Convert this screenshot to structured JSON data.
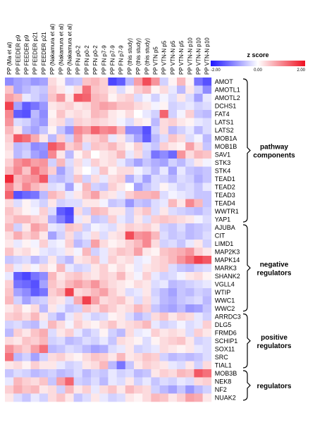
{
  "chart_data": {
    "type": "heatmap",
    "title": "",
    "columns": [
      "PP (Ma et al)",
      "PP FEEDER p9",
      "PP FEEDER p9",
      "PP FEEDER p21",
      "PP FEEDER p21",
      "PP (Nakamura et al)",
      "PP (Nakamura et al)",
      "PP (Nakamura et al)",
      "PP FN p0-2",
      "PP FN p0-2",
      "PP FN p0-2",
      "PP FN p7-9",
      "PP FN p7-9",
      "PP FN p7-9",
      "PP (this study)",
      "PP (this study)",
      "PP (this study)",
      "PP VTN p5",
      "PP VTN-N p5",
      "PP VTN-N p5",
      "PP VTN-N p5",
      "PP VTN-N p10",
      "PP VTN-N p10",
      "PP VTN-N p10"
    ],
    "rows": [
      "AMOT",
      "AMOTL1",
      "AMOTL2",
      "DCHS1",
      "FAT4",
      "LATS1",
      "LATS2",
      "MOB1A",
      "MOB1B",
      "SAV1",
      "STK3",
      "STK4",
      "TEAD1",
      "TEAD2",
      "TEAD3",
      "TEAD4",
      "WWTR1",
      "YAP1",
      "AJUBA",
      "CIT",
      "LIMD1",
      "MAP2K3",
      "MAPK14",
      "MARK3",
      "SHANK2",
      "VGLL4",
      "WTIP",
      "WWC1",
      "WWC2",
      "ARRDC3",
      "DLG5",
      "FRMD6",
      "SCHIP1",
      "SOX11",
      "SRC",
      "TIAL1",
      "MOB3B",
      "NEK8",
      "NF2",
      "NUAK2"
    ],
    "values": [
      [
        -1.0,
        -0.8,
        -0.7,
        -0.9,
        -0.8,
        0.3,
        0.1,
        -0.6,
        -0.5,
        0.5,
        0.6,
        0.4,
        -1.6,
        -1.4,
        -0.6,
        0.8,
        1.5,
        0.9,
        -0.4,
        0.1,
        0.6,
        0.1,
        -1.2,
        -1.5
      ],
      [
        0.5,
        -0.8,
        -0.6,
        -0.4,
        -0.5,
        0.4,
        0.2,
        -0.1,
        0.3,
        1.2,
        0.5,
        0.4,
        0.2,
        -0.3,
        0.1,
        0.4,
        0.6,
        0.1,
        0.3,
        -0.2,
        -0.6,
        0.2,
        -0.4,
        -1.0
      ],
      [
        0.8,
        0.6,
        -0.2,
        -0.4,
        -0.6,
        0.5,
        0.9,
        0.2,
        1.4,
        1.3,
        0.6,
        0.5,
        0.1,
        0.3,
        0.4,
        -0.3,
        -0.1,
        -0.4,
        -0.1,
        -0.3,
        0.2,
        -0.3,
        -0.8,
        -0.2
      ],
      [
        1.6,
        -0.8,
        -1.4,
        -1.2,
        -0.9,
        0.2,
        0.3,
        0.4,
        0.2,
        0.3,
        0.6,
        0.8,
        0.7,
        0.5,
        0.5,
        0.3,
        0.2,
        -0.1,
        0.1,
        -0.4,
        -0.3,
        -0.2,
        -0.4,
        -0.3
      ],
      [
        1.0,
        -1.4,
        -1.5,
        -0.6,
        -1.0,
        0.1,
        0.5,
        0.2,
        0.3,
        0.2,
        0.6,
        0.5,
        0.2,
        0.1,
        0.3,
        0.0,
        -0.2,
        -0.4,
        1.3,
        -0.4,
        -0.1,
        0.4,
        -0.5,
        -0.6
      ],
      [
        0.9,
        -0.3,
        -0.4,
        -0.7,
        -0.9,
        0.2,
        0.3,
        -0.4,
        0.4,
        0.3,
        0.4,
        0.3,
        0.2,
        -0.1,
        -0.3,
        0.2,
        0.1,
        -0.6,
        0.3,
        0.4,
        0.2,
        0.1,
        -0.2,
        -0.3
      ],
      [
        0.6,
        0.2,
        -0.6,
        -0.8,
        -0.5,
        0.1,
        -0.5,
        -0.9,
        1.0,
        0.8,
        1.3,
        1.0,
        1.1,
        0.6,
        -1.0,
        -1.0,
        -1.5,
        -0.4,
        0.3,
        -0.6,
        -0.4,
        -0.2,
        -0.6,
        -0.3
      ],
      [
        0.4,
        1.4,
        1.2,
        0.7,
        0.2,
        -0.6,
        0.4,
        -0.4,
        0.8,
        0.3,
        0.4,
        0.6,
        -0.2,
        0.2,
        -0.4,
        -0.8,
        -1.4,
        -0.6,
        -0.3,
        0.5,
        0.3,
        -0.3,
        -0.1,
        -0.6
      ],
      [
        0.3,
        -0.6,
        -0.5,
        -1.0,
        -0.9,
        1.4,
        1.1,
        0.4,
        0.6,
        -0.3,
        0.5,
        0.4,
        0.6,
        0.3,
        0.1,
        0.4,
        -0.3,
        -0.5,
        0.4,
        0.2,
        0.1,
        0.8,
        0.3,
        -0.5
      ],
      [
        0.2,
        -0.6,
        -0.4,
        -0.8,
        -1.0,
        1.0,
        0.2,
        -0.6,
        0.1,
        0.4,
        0.0,
        0.2,
        0.3,
        0.6,
        -0.2,
        0.3,
        -0.4,
        -1.2,
        -1.0,
        -1.3,
        0.9,
        0.3,
        0.6,
        0.5
      ],
      [
        0.4,
        0.9,
        1.1,
        0.8,
        0.9,
        -0.4,
        0.6,
        -0.3,
        0.3,
        -0.2,
        0.4,
        0.2,
        0.3,
        -0.2,
        -0.5,
        -0.8,
        -0.5,
        -0.7,
        -0.8,
        -0.4,
        -0.6,
        -0.3,
        0.2,
        -0.1
      ],
      [
        0.6,
        1.0,
        0.5,
        1.2,
        0.8,
        0.4,
        -0.8,
        -0.4,
        0.2,
        0.0,
        -0.2,
        0.5,
        0.1,
        0.3,
        0.3,
        -0.1,
        -0.3,
        -0.6,
        -0.2,
        -0.8,
        -0.2,
        -0.5,
        -0.6,
        -0.5
      ],
      [
        1.8,
        0.6,
        0.8,
        0.9,
        1.4,
        -0.5,
        -0.6,
        -0.4,
        0.5,
        -0.4,
        0.3,
        -0.2,
        0.3,
        0.4,
        -0.7,
        -0.3,
        -0.8,
        -0.3,
        -0.4,
        -0.6,
        -0.3,
        -0.4,
        -0.7,
        -0.5
      ],
      [
        1.0,
        0.5,
        1.0,
        0.6,
        0.4,
        -0.3,
        -0.2,
        -0.8,
        -0.1,
        0.6,
        -0.4,
        -0.5,
        0.4,
        0.2,
        0.0,
        -0.8,
        -0.5,
        -0.3,
        0.1,
        -0.2,
        -0.4,
        -0.3,
        -0.5,
        -0.2
      ],
      [
        1.3,
        -1.5,
        -1.3,
        -1.2,
        -0.6,
        0.6,
        0.4,
        -0.2,
        0.2,
        0.5,
        0.8,
        0.3,
        0.2,
        -0.2,
        0.4,
        0.6,
        0.6,
        0.7,
        -0.3,
        -0.1,
        -0.2,
        -0.3,
        -0.5,
        -0.5
      ],
      [
        0.3,
        -0.3,
        0.1,
        -0.2,
        -0.4,
        0.2,
        -0.4,
        -0.3,
        -0.3,
        0.2,
        0.2,
        -0.1,
        -0.5,
        -0.4,
        -0.9,
        -0.5,
        -0.6,
        -0.3,
        -0.2,
        0.6,
        0.2,
        1.0,
        0.6,
        -0.5
      ],
      [
        0.5,
        0.3,
        0.1,
        -0.1,
        0.4,
        -0.3,
        -1.4,
        -1.6,
        0.3,
        -0.4,
        0.6,
        0.5,
        0.2,
        0.2,
        -0.4,
        0.3,
        0.5,
        -0.3,
        0.2,
        -0.3,
        -0.4,
        -0.5,
        -0.6,
        -0.4
      ],
      [
        0.4,
        0.6,
        0.6,
        0.4,
        0.3,
        -0.7,
        -1.1,
        -1.5,
        -0.2,
        0.2,
        -0.5,
        -0.4,
        0.4,
        -0.2,
        -0.4,
        0.2,
        -0.3,
        0.4,
        0.5,
        0.4,
        0.3,
        0.2,
        -0.1,
        -0.3
      ],
      [
        0.6,
        -0.4,
        0.2,
        0.8,
        0.6,
        -0.2,
        -0.3,
        0.5,
        0.4,
        -0.4,
        -0.1,
        -0.2,
        -0.3,
        0.2,
        0.4,
        0.3,
        0.4,
        0.2,
        -0.4,
        -0.5,
        -0.3,
        -0.6,
        -0.5,
        -0.4
      ],
      [
        0.3,
        0.7,
        0.4,
        0.6,
        0.2,
        -0.8,
        -0.4,
        0.3,
        -0.4,
        -0.2,
        0.3,
        -0.3,
        0.2,
        0.3,
        1.5,
        0.9,
        1.0,
        0.6,
        -0.3,
        -0.5,
        -0.4,
        -0.6,
        -0.5,
        -0.3
      ],
      [
        0.2,
        -0.2,
        0.1,
        -0.1,
        0.4,
        -0.2,
        -0.1,
        0.4,
        -0.6,
        -0.4,
        0.8,
        0.3,
        0.1,
        0.2,
        0.4,
        0.6,
        1.0,
        0.3,
        -0.4,
        -0.3,
        -0.5,
        -0.2,
        0.2,
        -0.4
      ],
      [
        0.5,
        0.2,
        0.3,
        0.1,
        -0.2,
        -0.3,
        -0.2,
        0.2,
        -0.1,
        0.6,
        -0.4,
        -0.2,
        0.3,
        0.5,
        0.4,
        0.8,
        0.2,
        0.1,
        0.5,
        0.6,
        0.7,
        0.9,
        0.4,
        0.2
      ],
      [
        -0.5,
        -0.4,
        -0.3,
        -0.6,
        -0.4,
        0.2,
        -0.4,
        -0.6,
        0.2,
        0.3,
        0.5,
        -0.2,
        0.4,
        0.2,
        0.3,
        -0.2,
        -0.1,
        0.3,
        0.4,
        0.6,
        0.9,
        1.2,
        1.6,
        1.4
      ],
      [
        0.4,
        -0.2,
        0.2,
        -0.1,
        0.3,
        0.1,
        0.6,
        -0.2,
        -0.4,
        -0.3,
        0.2,
        0.4,
        0.1,
        0.3,
        0.1,
        -0.2,
        0.2,
        0.3,
        0.4,
        -0.3,
        -0.5,
        -0.6,
        -0.4,
        -0.3
      ],
      [
        -0.2,
        -1.4,
        -1.6,
        -1.2,
        -1.0,
        0.6,
        0.2,
        0.4,
        0.5,
        0.3,
        0.2,
        0.4,
        0.3,
        0.6,
        0.2,
        -0.1,
        0.4,
        -0.2,
        -0.4,
        -0.3,
        -0.1,
        0.2,
        0.3,
        0.1
      ],
      [
        0.4,
        -1.2,
        -1.3,
        -1.5,
        -0.8,
        0.5,
        0.3,
        0.6,
        0.8,
        0.6,
        0.9,
        0.5,
        0.3,
        0.2,
        0.1,
        0.3,
        0.2,
        -0.3,
        -0.2,
        -0.6,
        -0.5,
        -0.4,
        -0.3,
        -0.2
      ],
      [
        0.5,
        -0.8,
        -1.0,
        -1.4,
        -1.2,
        0.4,
        0.6,
        1.6,
        0.3,
        0.4,
        0.6,
        0.8,
        0.4,
        0.2,
        -0.3,
        -0.2,
        0.2,
        -0.4,
        -0.6,
        -0.8,
        -0.5,
        -0.6,
        -0.4,
        -0.5
      ],
      [
        0.6,
        -0.4,
        -0.8,
        -0.5,
        -0.4,
        0.3,
        0.2,
        -0.3,
        0.7,
        1.6,
        0.8,
        0.3,
        0.4,
        0.5,
        0.2,
        -0.3,
        0.3,
        -0.3,
        -0.6,
        -0.7,
        -0.5,
        -0.4,
        -0.3,
        -0.6
      ],
      [
        0.2,
        0.4,
        0.1,
        0.3,
        -0.6,
        0.2,
        -0.2,
        -0.5,
        -0.4,
        0.5,
        0.3,
        0.6,
        0.4,
        0.2,
        0.3,
        0.6,
        0.4,
        -0.5,
        -0.7,
        -0.8,
        -0.6,
        -0.9,
        -0.8,
        -0.5
      ],
      [
        0.4,
        0.5,
        0.3,
        0.6,
        0.2,
        -0.4,
        -0.7,
        -0.2,
        0.3,
        -0.2,
        -0.4,
        -0.3,
        0.1,
        0.2,
        -0.3,
        -0.6,
        -0.4,
        0.3,
        0.5,
        0.2,
        0.4,
        0.3,
        -0.2,
        -0.4
      ],
      [
        -0.4,
        -0.3,
        -0.5,
        -0.6,
        -0.2,
        0.6,
        0.3,
        -0.1,
        0.4,
        0.2,
        0.1,
        0.3,
        0.5,
        0.2,
        0.3,
        0.4,
        0.6,
        -0.2,
        -0.4,
        -0.3,
        -0.1,
        -0.3,
        -0.2,
        0.4
      ],
      [
        -0.6,
        0.4,
        0.2,
        0.5,
        0.7,
        -0.3,
        0.2,
        0.4,
        -0.2,
        -0.5,
        -0.3,
        0.1,
        -0.4,
        -0.6,
        0.3,
        -0.2,
        -0.1,
        0.4,
        0.2,
        0.3,
        0.2,
        -0.3,
        0.4,
        0.2
      ],
      [
        0.3,
        0.2,
        0.5,
        0.4,
        0.6,
        -0.4,
        -0.3,
        -0.6,
        -0.5,
        -0.3,
        -0.4,
        -0.2,
        -0.5,
        0.3,
        0.2,
        0.1,
        -0.3,
        0.1,
        0.3,
        0.4,
        0.5,
        0.2,
        -0.4,
        -0.3
      ],
      [
        0.9,
        0.6,
        0.4,
        0.8,
        1.2,
        -0.6,
        -0.5,
        -0.3,
        -0.4,
        -0.6,
        -0.8,
        -0.7,
        -0.3,
        -0.2,
        0.2,
        -0.4,
        -0.3,
        -0.2,
        0.3,
        0.2,
        0.1,
        0.2,
        -0.2,
        -0.3
      ],
      [
        1.2,
        -0.6,
        -0.4,
        -0.8,
        -0.4,
        0.3,
        0.4,
        0.2,
        0.1,
        0.3,
        0.5,
        0.4,
        0.2,
        0.6,
        0.2,
        0.3,
        0.5,
        0.4,
        -0.4,
        -0.6,
        -0.5,
        -0.6,
        -0.5,
        -0.3
      ],
      [
        0.2,
        0.3,
        0.1,
        0.4,
        0.2,
        0.2,
        -0.2,
        -0.4,
        -0.3,
        0.2,
        0.3,
        0.6,
        -0.6,
        -1.2,
        -0.5,
        0.2,
        0.4,
        0.3,
        0.2,
        -0.2,
        -0.3,
        0.2,
        -0.4,
        0.3
      ],
      [
        -0.5,
        -0.3,
        -0.4,
        -0.6,
        -0.5,
        -0.4,
        -0.6,
        -0.5,
        -0.3,
        -0.6,
        -0.4,
        -0.5,
        -0.2,
        -0.4,
        -0.3,
        -0.6,
        -0.5,
        0.2,
        0.4,
        0.3,
        0.6,
        0.5,
        1.4,
        1.2
      ],
      [
        -0.2,
        0.6,
        0.4,
        0.3,
        0.5,
        -0.5,
        0.8,
        1.3,
        -0.4,
        -0.5,
        -0.3,
        -0.6,
        -0.2,
        -0.3,
        0.2,
        -0.4,
        -0.2,
        -0.5,
        -0.3,
        -0.4,
        -0.2,
        -0.3,
        0.3,
        0.4
      ],
      [
        0.4,
        0.7,
        0.5,
        0.6,
        0.2,
        0.3,
        -0.4,
        0.6,
        0.2,
        0.4,
        -0.2,
        0.3,
        0.5,
        0.2,
        0.6,
        0.4,
        0.3,
        -0.4,
        -0.6,
        -0.8,
        -0.5,
        -0.9,
        -0.6,
        -0.4
      ],
      [
        0.2,
        -0.3,
        -0.5,
        -0.2,
        -0.4,
        0.3,
        0.5,
        0.2,
        -0.5,
        -0.3,
        0.2,
        -0.2,
        -0.4,
        -0.3,
        0.2,
        0.1,
        0.3,
        0.6,
        0.5,
        0.2,
        0.4,
        0.8,
        0.7,
        0.2
      ]
    ],
    "colorbar": {
      "label": "z score",
      "min": -2.0,
      "max": 2.0,
      "ticks": [
        "-2.00",
        "0.00",
        "2.00"
      ],
      "colors": {
        "low": "#1f17ff",
        "mid": "#ffffff",
        "high": "#ee1122"
      }
    },
    "groups": [
      {
        "label": [
          "pathway",
          "components"
        ],
        "from": 0,
        "to": 17
      },
      {
        "label": [
          "negative",
          "regulators"
        ],
        "from": 18,
        "to": 28
      },
      {
        "label": [
          "positive",
          "regulators"
        ],
        "from": 29,
        "to": 35
      },
      {
        "label": [
          "regulators"
        ],
        "from": 36,
        "to": 39
      }
    ]
  }
}
